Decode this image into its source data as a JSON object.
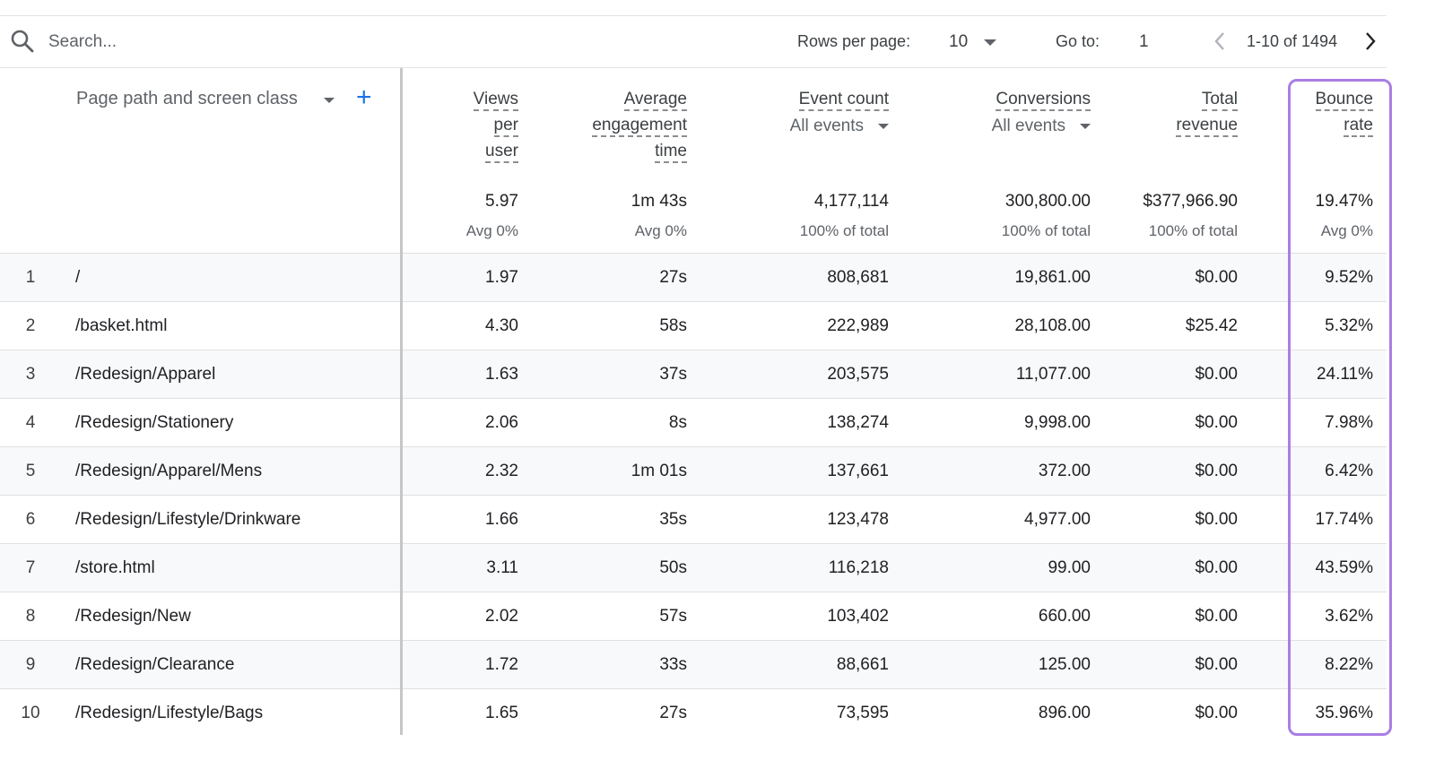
{
  "toolbar": {
    "search_placeholder": "Search...",
    "rows_per_page_label": "Rows per page:",
    "rows_per_page_value": "10",
    "goto_label": "Go to:",
    "goto_value": "1",
    "range_text": "1-10 of 1494",
    "icons": [
      "search-icon",
      "chevron-down-icon",
      "chevron-left-icon",
      "chevron-right-icon"
    ]
  },
  "table": {
    "dimension_header": "Page path and screen class",
    "add_dimension_label": "+",
    "columns": [
      {
        "key": "views",
        "lines": [
          "Views",
          "per",
          "user"
        ],
        "sub": ""
      },
      {
        "key": "engagement",
        "lines": [
          "Average",
          "engagement",
          "time"
        ],
        "sub": ""
      },
      {
        "key": "events",
        "lines": [
          "Event count"
        ],
        "sub": "All events"
      },
      {
        "key": "conversions",
        "lines": [
          "Conversions"
        ],
        "sub": "All events"
      },
      {
        "key": "revenue",
        "lines": [
          "Total",
          "revenue"
        ],
        "sub": ""
      },
      {
        "key": "bounce",
        "lines": [
          "Bounce",
          "rate"
        ],
        "sub": ""
      }
    ],
    "totals": [
      {
        "value": "5.97",
        "sub": "Avg 0%"
      },
      {
        "value": "1m 43s",
        "sub": "Avg 0%"
      },
      {
        "value": "4,177,114",
        "sub": "100% of total"
      },
      {
        "value": "300,800.00",
        "sub": "100% of total"
      },
      {
        "value": "$377,966.90",
        "sub": "100% of total"
      },
      {
        "value": "19.47%",
        "sub": "Avg 0%"
      }
    ],
    "rows": [
      {
        "idx": "1",
        "path": "/",
        "views": "1.97",
        "engagement": "27s",
        "events": "808,681",
        "conversions": "19,861.00",
        "revenue": "$0.00",
        "bounce": "9.52%"
      },
      {
        "idx": "2",
        "path": "/basket.html",
        "views": "4.30",
        "engagement": "58s",
        "events": "222,989",
        "conversions": "28,108.00",
        "revenue": "$25.42",
        "bounce": "5.32%"
      },
      {
        "idx": "3",
        "path": "/Redesign/Apparel",
        "views": "1.63",
        "engagement": "37s",
        "events": "203,575",
        "conversions": "11,077.00",
        "revenue": "$0.00",
        "bounce": "24.11%"
      },
      {
        "idx": "4",
        "path": "/Redesign/Stationery",
        "views": "2.06",
        "engagement": "8s",
        "events": "138,274",
        "conversions": "9,998.00",
        "revenue": "$0.00",
        "bounce": "7.98%"
      },
      {
        "idx": "5",
        "path": "/Redesign/Apparel/Mens",
        "views": "2.32",
        "engagement": "1m 01s",
        "events": "137,661",
        "conversions": "372.00",
        "revenue": "$0.00",
        "bounce": "6.42%"
      },
      {
        "idx": "6",
        "path": "/Redesign/Lifestyle/Drinkware",
        "views": "1.66",
        "engagement": "35s",
        "events": "123,478",
        "conversions": "4,977.00",
        "revenue": "$0.00",
        "bounce": "17.74%"
      },
      {
        "idx": "7",
        "path": "/store.html",
        "views": "3.11",
        "engagement": "50s",
        "events": "116,218",
        "conversions": "99.00",
        "revenue": "$0.00",
        "bounce": "43.59%"
      },
      {
        "idx": "8",
        "path": "/Redesign/New",
        "views": "2.02",
        "engagement": "57s",
        "events": "103,402",
        "conversions": "660.00",
        "revenue": "$0.00",
        "bounce": "3.62%"
      },
      {
        "idx": "9",
        "path": "/Redesign/Clearance",
        "views": "1.72",
        "engagement": "33s",
        "events": "88,661",
        "conversions": "125.00",
        "revenue": "$0.00",
        "bounce": "8.22%"
      },
      {
        "idx": "10",
        "path": "/Redesign/Lifestyle/Bags",
        "views": "1.65",
        "engagement": "27s",
        "events": "73,595",
        "conversions": "896.00",
        "revenue": "$0.00",
        "bounce": "35.96%"
      }
    ]
  },
  "colors": {
    "accent_blue": "#1a73e8",
    "highlight_purple": "#a97ee3",
    "stripe": "#f8f9fa"
  }
}
